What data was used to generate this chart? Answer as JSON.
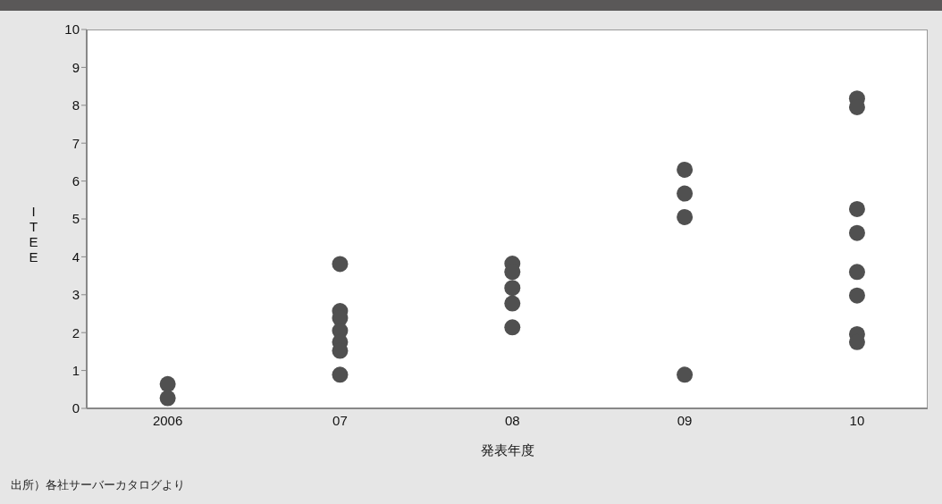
{
  "chart_data": {
    "type": "scatter",
    "xlabel": "発表年度",
    "ylabel": "ITEE",
    "categories": [
      "2006",
      "07",
      "08",
      "09",
      "10"
    ],
    "series": [
      {
        "color": "#505050",
        "values": [
          0.64,
          3.81,
          3.82,
          6.3,
          8.18
        ]
      },
      {
        "color": "#505050",
        "values": [
          0.27,
          2.57,
          3.6,
          5.67,
          7.95
        ]
      },
      {
        "color": "#505050",
        "values": [
          null,
          2.38,
          3.18,
          5.05,
          5.26
        ]
      },
      {
        "color": "#505050",
        "values": [
          null,
          2.05,
          2.77,
          0.89,
          4.63
        ]
      },
      {
        "color": "#505050",
        "values": [
          null,
          1.75,
          2.14,
          null,
          3.6
        ]
      },
      {
        "color": "#505050",
        "values": [
          null,
          1.52,
          null,
          null,
          2.98
        ]
      },
      {
        "color": "#505050",
        "values": [
          null,
          0.89,
          null,
          null,
          1.96
        ]
      },
      {
        "color": "#505050",
        "values": [
          null,
          null,
          null,
          null,
          1.75
        ]
      }
    ],
    "ylim": [
      0,
      10
    ],
    "yticks": [
      0,
      1,
      2,
      3,
      4,
      5,
      6,
      7,
      8,
      9,
      10
    ],
    "marker": "circle",
    "grid": false,
    "legend": false,
    "annotations": [
      "出所）各社サーバーカタログより"
    ]
  }
}
